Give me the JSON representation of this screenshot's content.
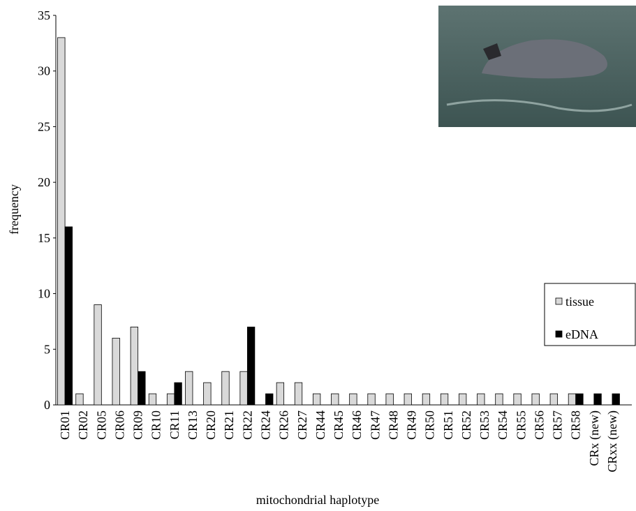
{
  "chart_data": {
    "type": "bar",
    "x_label": "mitochondrial haplotype",
    "y_label": "frequency",
    "categories": [
      "CR01",
      "CR02",
      "CR05",
      "CR06",
      "CR09",
      "CR10",
      "CR11",
      "CR13",
      "CR20",
      "CR21",
      "CR22",
      "CR24",
      "CR26",
      "CR27",
      "CR44",
      "CR45",
      "CR46",
      "CR47",
      "CR48",
      "CR49",
      "CR50",
      "CR51",
      "CR52",
      "CR53",
      "CR54",
      "CR55",
      "CR56",
      "CR57",
      "CR58",
      "CRx (new)",
      "CRxx (new)"
    ],
    "series": [
      {
        "name": "tissue",
        "color": "#d9d9d9",
        "values": [
          33,
          1,
          9,
          6,
          7,
          1,
          1,
          3,
          2,
          3,
          3,
          0,
          2,
          2,
          1,
          1,
          1,
          1,
          1,
          1,
          1,
          1,
          1,
          1,
          1,
          1,
          1,
          1,
          1,
          0,
          0
        ]
      },
      {
        "name": "eDNA",
        "color": "#000000",
        "values": [
          16,
          0,
          0,
          0,
          3,
          0,
          2,
          0,
          0,
          0,
          7,
          1,
          0,
          0,
          0,
          0,
          0,
          0,
          0,
          0,
          0,
          0,
          0,
          0,
          0,
          0,
          0,
          0,
          1,
          1,
          1
        ]
      }
    ],
    "ylim": [
      0,
      35
    ],
    "yticks": [
      0,
      5,
      10,
      15,
      20,
      25,
      30,
      35
    ],
    "grid": false,
    "legend": "right"
  }
}
